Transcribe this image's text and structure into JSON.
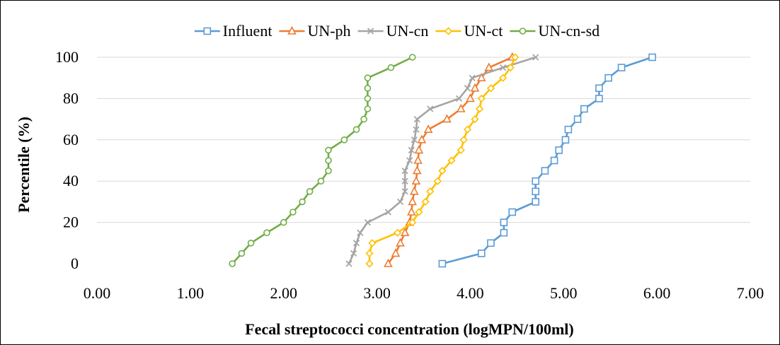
{
  "chart_data": {
    "type": "line",
    "title": "",
    "xlabel": "Fecal streptococci concentration (logMPN/100ml)",
    "ylabel": "Percentile (%)",
    "xlim": [
      0,
      7
    ],
    "ylim": [
      0,
      100
    ],
    "x_ticks": [
      0,
      1,
      2,
      3,
      4,
      5,
      6,
      7
    ],
    "x_tick_labels": [
      "0.00",
      "1.00",
      "2.00",
      "3.00",
      "4.00",
      "5.00",
      "6.00",
      "7.00"
    ],
    "y_ticks": [
      0,
      20,
      40,
      60,
      80,
      100
    ],
    "y_tick_labels": [
      "0",
      "20",
      "40",
      "60",
      "80",
      "100"
    ],
    "grid": "horizontal",
    "legend_position": "top",
    "series": [
      {
        "name": "Influent",
        "color": "#5B9BD5",
        "marker": "square",
        "points": [
          [
            3.7,
            0
          ],
          [
            4.12,
            5
          ],
          [
            4.22,
            10
          ],
          [
            4.36,
            15
          ],
          [
            4.36,
            20
          ],
          [
            4.45,
            25
          ],
          [
            4.7,
            30
          ],
          [
            4.7,
            35
          ],
          [
            4.7,
            40
          ],
          [
            4.8,
            45
          ],
          [
            4.9,
            50
          ],
          [
            4.95,
            55
          ],
          [
            5.02,
            60
          ],
          [
            5.05,
            65
          ],
          [
            5.15,
            70
          ],
          [
            5.22,
            75
          ],
          [
            5.38,
            80
          ],
          [
            5.38,
            85
          ],
          [
            5.48,
            90
          ],
          [
            5.62,
            95
          ],
          [
            5.95,
            100
          ]
        ]
      },
      {
        "name": "UN-ph",
        "color": "#ED7D31",
        "marker": "triangle",
        "points": [
          [
            3.12,
            0
          ],
          [
            3.2,
            5
          ],
          [
            3.25,
            10
          ],
          [
            3.3,
            15
          ],
          [
            3.35,
            20
          ],
          [
            3.37,
            25
          ],
          [
            3.38,
            30
          ],
          [
            3.4,
            35
          ],
          [
            3.42,
            40
          ],
          [
            3.43,
            45
          ],
          [
            3.44,
            50
          ],
          [
            3.45,
            55
          ],
          [
            3.48,
            60
          ],
          [
            3.55,
            65
          ],
          [
            3.75,
            70
          ],
          [
            3.9,
            75
          ],
          [
            4.0,
            80
          ],
          [
            4.05,
            85
          ],
          [
            4.12,
            90
          ],
          [
            4.2,
            95
          ],
          [
            4.45,
            100
          ]
        ]
      },
      {
        "name": "UN-cn",
        "color": "#A5A5A5",
        "marker": "x",
        "points": [
          [
            2.7,
            0
          ],
          [
            2.75,
            5
          ],
          [
            2.78,
            10
          ],
          [
            2.82,
            15
          ],
          [
            2.9,
            20
          ],
          [
            3.12,
            25
          ],
          [
            3.25,
            30
          ],
          [
            3.3,
            35
          ],
          [
            3.3,
            40
          ],
          [
            3.3,
            45
          ],
          [
            3.35,
            50
          ],
          [
            3.37,
            55
          ],
          [
            3.4,
            60
          ],
          [
            3.42,
            65
          ],
          [
            3.43,
            70
          ],
          [
            3.57,
            75
          ],
          [
            3.88,
            80
          ],
          [
            3.97,
            85
          ],
          [
            4.02,
            90
          ],
          [
            4.35,
            95
          ],
          [
            4.7,
            100
          ]
        ]
      },
      {
        "name": "UN-ct",
        "color": "#FFC000",
        "marker": "diamond",
        "points": [
          [
            2.92,
            0
          ],
          [
            2.92,
            5
          ],
          [
            2.95,
            10
          ],
          [
            3.22,
            15
          ],
          [
            3.38,
            20
          ],
          [
            3.45,
            25
          ],
          [
            3.52,
            30
          ],
          [
            3.57,
            35
          ],
          [
            3.65,
            40
          ],
          [
            3.7,
            45
          ],
          [
            3.8,
            50
          ],
          [
            3.9,
            55
          ],
          [
            3.93,
            60
          ],
          [
            3.97,
            65
          ],
          [
            4.05,
            70
          ],
          [
            4.1,
            75
          ],
          [
            4.12,
            80
          ],
          [
            4.22,
            85
          ],
          [
            4.35,
            90
          ],
          [
            4.43,
            95
          ],
          [
            4.48,
            100
          ]
        ]
      },
      {
        "name": "UN-cn-sd",
        "color": "#70AD47",
        "marker": "circle",
        "points": [
          [
            1.45,
            0
          ],
          [
            1.55,
            5
          ],
          [
            1.65,
            10
          ],
          [
            1.82,
            15
          ],
          [
            2.0,
            20
          ],
          [
            2.1,
            25
          ],
          [
            2.2,
            30
          ],
          [
            2.28,
            35
          ],
          [
            2.4,
            40
          ],
          [
            2.48,
            45
          ],
          [
            2.48,
            50
          ],
          [
            2.48,
            55
          ],
          [
            2.65,
            60
          ],
          [
            2.78,
            65
          ],
          [
            2.86,
            70
          ],
          [
            2.9,
            75
          ],
          [
            2.9,
            80
          ],
          [
            2.9,
            85
          ],
          [
            2.9,
            90
          ],
          [
            3.15,
            95
          ],
          [
            3.38,
            100
          ]
        ]
      }
    ]
  }
}
